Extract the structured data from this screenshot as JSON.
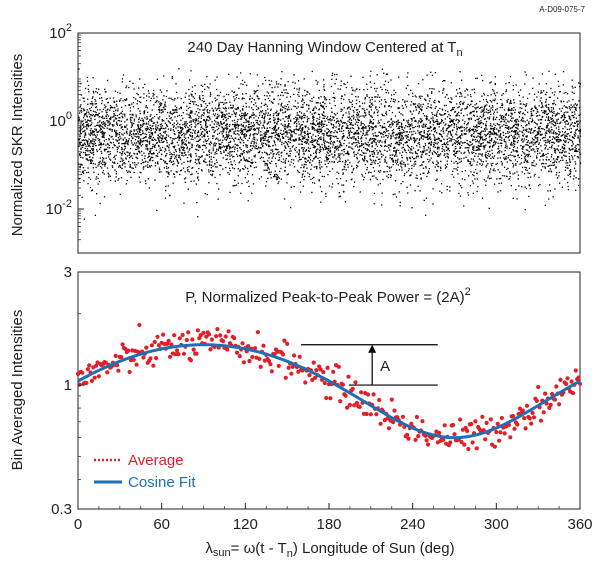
{
  "figure_id": "A-D09-075-7",
  "colors": {
    "axis": "#231f20",
    "average": "#e31e26",
    "fit": "#1f6fb4",
    "scatter": "#000000"
  },
  "chart_data": [
    {
      "type": "scatter",
      "title": "240 Day Hanning Window Centered at T",
      "title_sub": "n",
      "ylabel": "Normalized SKR Intensities",
      "yscale": "log",
      "xlim": [
        0,
        360
      ],
      "ylim": [
        0.001,
        100
      ],
      "y_ticks": [
        {
          "base": "10",
          "exp": "2",
          "value": 100
        },
        {
          "base": "10",
          "exp": "0",
          "value": 1
        },
        {
          "base": "10",
          "exp": "-2",
          "value": 0.01
        }
      ],
      "point_count": 6500,
      "median_level": 0.5,
      "typical_range": [
        0.02,
        8
      ],
      "grid": false
    },
    {
      "type": "scatter",
      "title": "P, Normalized Peak-to-Peak Power = (2A)",
      "title_sup": "2",
      "ylabel": "Bin Averaged Intensities",
      "xlabel_pre": "λ",
      "xlabel_sub1": "sun",
      "xlabel_mid": "= ω(t - T",
      "xlabel_sub2": "n",
      "xlabel_post": ")  Longitude of Sun (deg)",
      "yscale": "log",
      "xlim": [
        0,
        360
      ],
      "ylim": [
        0.3,
        3
      ],
      "y_ticks": [
        {
          "label": "3",
          "value": 3
        },
        {
          "label": "1",
          "value": 1
        },
        {
          "label": "0.3",
          "value": 0.3
        }
      ],
      "x_ticks": [
        0,
        60,
        120,
        180,
        240,
        300,
        360
      ],
      "x_tick_labels": [
        "0",
        "60",
        "120",
        "180",
        "240",
        "300",
        "360"
      ],
      "cosine_fit": {
        "mean": 1.04,
        "amplitude": 0.44,
        "peak_longitude": 90
      },
      "amplitude_label": "A",
      "amplitude_marker": {
        "x_from": 160,
        "x_to": 258,
        "y_top": 1.48,
        "y_base": 1.0
      },
      "average_x_step": 1,
      "average_scatter": 0.08,
      "legend_position": "lower-left",
      "series": [
        {
          "name": "Average",
          "style": "dotted-markers"
        },
        {
          "name": "Cosine Fit",
          "style": "line"
        }
      ],
      "grid": false
    }
  ]
}
